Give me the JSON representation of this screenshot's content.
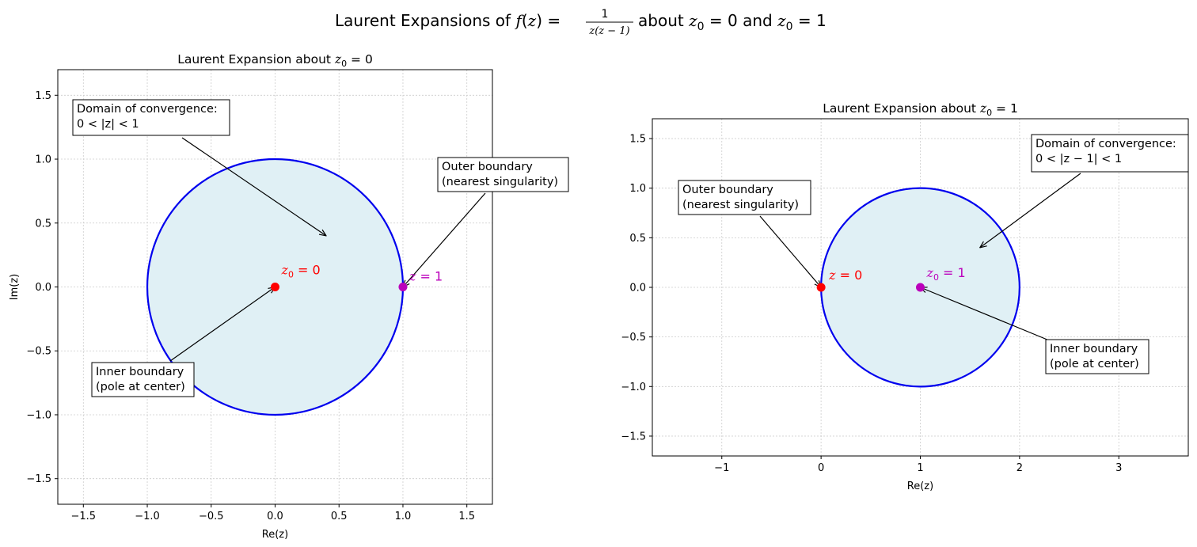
{
  "figure": {
    "suptitle": {
      "prefix": "Laurent Expansions of ",
      "f": "f",
      "open": "(",
      "z": "z",
      "close_eq": ") = ",
      "frac_num": "1",
      "frac_den": "z(z − 1)",
      "mid": " about ",
      "z0a": "z",
      "z0a_sub": "0",
      "eq0": " = 0",
      "and": " and ",
      "z0b": "z",
      "z0b_sub": "0",
      "eq1": " = 1"
    }
  },
  "chart_data": [
    {
      "type": "scatter",
      "title_prefix": "Laurent Expansion about ",
      "title_var": "z",
      "title_sub": "0",
      "title_eq": " = 0",
      "xlabel": "Re(z)",
      "ylabel": "Im(z)",
      "xlim": [
        -1.7,
        1.7
      ],
      "ylim": [
        -1.7,
        1.7
      ],
      "xticks": [
        -1.5,
        -1.0,
        -0.5,
        0.0,
        0.5,
        1.0,
        1.5
      ],
      "yticks": [
        -1.5,
        -1.0,
        -0.5,
        0.0,
        0.5,
        1.0,
        1.5
      ],
      "xtick_labels": [
        "−1.5",
        "−1.0",
        "−0.5",
        "0.0",
        "0.5",
        "1.0",
        "1.5"
      ],
      "ytick_labels": [
        "−1.5",
        "−1.0",
        "−0.5",
        "0.0",
        "0.5",
        "1.0",
        "1.5"
      ],
      "grid": true,
      "region": {
        "center": [
          0,
          0
        ],
        "radius": 1,
        "fill_color": "#e0f0f5",
        "edge_color": "#0000ee"
      },
      "points": [
        {
          "x": 0,
          "y": 0,
          "color": "#ff0000",
          "var": "z",
          "sub": "0",
          "rest": " = 0"
        },
        {
          "x": 1,
          "y": 0,
          "color": "#bb00bb",
          "var": "z",
          "sub": "",
          "rest": " = 1"
        }
      ],
      "annotations": [
        {
          "lines": [
            "Domain of convergence:",
            "0 < |z| < 1"
          ],
          "target": [
            0.4,
            0.4
          ]
        },
        {
          "lines": [
            "Outer boundary",
            "(nearest singularity)"
          ],
          "target": [
            1.0,
            0.0
          ]
        },
        {
          "lines": [
            "Inner boundary",
            "(pole at center)"
          ],
          "target": [
            0.0,
            0.0
          ]
        }
      ]
    },
    {
      "type": "scatter",
      "title_prefix": "Laurent Expansion about ",
      "title_var": "z",
      "title_sub": "0",
      "title_eq": " = 1",
      "xlabel": "Re(z)",
      "ylabel": "",
      "xlim": [
        -1.7,
        3.7
      ],
      "ylim": [
        -1.7,
        1.7
      ],
      "xticks": [
        -1,
        0,
        1,
        2,
        3
      ],
      "yticks": [
        -1.5,
        -1.0,
        -0.5,
        0.0,
        0.5,
        1.0,
        1.5
      ],
      "xtick_labels": [
        "−1",
        "0",
        "1",
        "2",
        "3"
      ],
      "ytick_labels": [
        "−1.5",
        "−1.0",
        "−0.5",
        "0.0",
        "0.5",
        "1.0",
        "1.5"
      ],
      "grid": true,
      "region": {
        "center": [
          1,
          0
        ],
        "radius": 1,
        "fill_color": "#e0f0f5",
        "edge_color": "#0000ee"
      },
      "points": [
        {
          "x": 0,
          "y": 0,
          "color": "#ff0000",
          "var": "z",
          "sub": "",
          "rest": " = 0"
        },
        {
          "x": 1,
          "y": 0,
          "color": "#bb00bb",
          "var": "z",
          "sub": "0",
          "rest": " = 1"
        }
      ],
      "annotations": [
        {
          "lines": [
            "Domain of convergence:",
            "0 < |z − 1| < 1"
          ],
          "target": [
            1.6,
            0.4
          ]
        },
        {
          "lines": [
            "Outer boundary",
            "(nearest singularity)"
          ],
          "target": [
            0.0,
            0.0
          ]
        },
        {
          "lines": [
            "Inner boundary",
            "(pole at center)"
          ],
          "target": [
            1.0,
            0.0
          ]
        }
      ]
    }
  ]
}
